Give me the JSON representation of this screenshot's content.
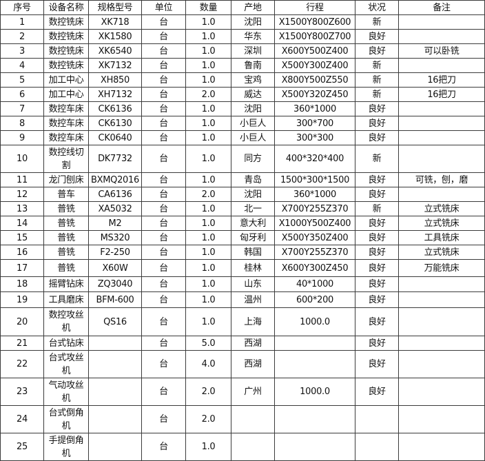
{
  "headers": [
    "序号",
    "设备名称",
    "规格型号",
    "单位",
    "数量",
    "产地",
    "行程",
    "状况",
    "备注"
  ],
  "rows": [
    [
      "1",
      "数控铣床",
      "XK718",
      "台",
      "1.0",
      "沈阳",
      "X1500Y800Z600",
      "新",
      ""
    ],
    [
      "2",
      "数控铣床",
      "XK1580",
      "台",
      "1.0",
      "华东",
      "X1500Y800Z700",
      "良好",
      ""
    ],
    [
      "3",
      "数控铣床",
      "XK6540",
      "台",
      "1.0",
      "深圳",
      "X600Y500Z400",
      "良好",
      "可以卧铣"
    ],
    [
      "4",
      "数控铣床",
      "XK7132",
      "台",
      "1.0",
      "鲁南",
      "X500Y300Z400",
      "新",
      ""
    ],
    [
      "5",
      "加工中心",
      "XH850",
      "台",
      "1.0",
      "宝鸡",
      "X800Y500Z550",
      "新",
      "16把刀"
    ],
    [
      "6",
      "加工中心",
      "XH7132",
      "台",
      "2.0",
      "威达",
      "X500Y320Z450",
      "新",
      "16把刀"
    ],
    [
      "7",
      "数控车床",
      "CK6136",
      "台",
      "1.0",
      "沈阳",
      "360*1000",
      "良好",
      ""
    ],
    [
      "8",
      "数控车床",
      "CK6130",
      "台",
      "1.0",
      "小巨人",
      "300*700",
      "良好",
      ""
    ],
    [
      "9",
      "数控车床",
      "CK0640",
      "台",
      "1.0",
      "小巨人",
      "300*300",
      "良好",
      ""
    ],
    [
      "10",
      "数控线切割",
      "DK7732",
      "台",
      "1.0",
      "同方",
      "400*320*400",
      "新",
      ""
    ],
    [
      "11",
      "龙门刨床",
      "BXMQ2016",
      "台",
      "1.0",
      "青岛",
      "1500*300*1500",
      "良好",
      "可铣，刨，磨"
    ],
    [
      "12",
      "普车",
      "CA6136",
      "台",
      "2.0",
      "沈阳",
      "360*1000",
      "良好",
      ""
    ],
    [
      "13",
      "普铣",
      "XA5032",
      "台",
      "1.0",
      "北一",
      "X700Y255Z370",
      "新",
      "立式铣床"
    ],
    [
      "14",
      "普铣",
      "M2",
      "台",
      "1.0",
      "意大利",
      "X1000Y500Z400",
      "良好",
      "立式铣床"
    ],
    [
      "15",
      "普铣",
      "MS320",
      "台",
      "1.0",
      "匈牙利",
      "X500Y350Z400",
      "良好",
      "工具铣床"
    ],
    [
      "16",
      "普铣",
      "F2-250",
      "台",
      "1.0",
      "韩国",
      "X700Y255Z370",
      "良好",
      "立式铣床"
    ],
    [
      "17",
      "普铣",
      "X60W",
      "台",
      "1.0",
      "桂林",
      "X600Y300Z450",
      "良好",
      "万能铣床"
    ],
    [
      "18",
      "摇臂钻床",
      "ZQ3040",
      "台",
      "1.0",
      "山东",
      "40*1000",
      "良好",
      ""
    ],
    [
      "19",
      "工具磨床",
      "BFM-600",
      "台",
      "1.0",
      "温州",
      "600*200",
      "良好",
      ""
    ],
    [
      "20",
      "数控攻丝机",
      "QS16",
      "台",
      "1.0",
      "上海",
      "1000.0",
      "良好",
      ""
    ],
    [
      "21",
      "台式钻床",
      "",
      "台",
      "5.0",
      "西湖",
      "",
      "良好",
      ""
    ],
    [
      "22",
      "台式攻丝机",
      "",
      "台",
      "4.0",
      "西湖",
      "",
      "良好",
      ""
    ],
    [
      "23",
      "气动攻丝机",
      "",
      "台",
      "2.0",
      "广州",
      "1000.0",
      "良好",
      ""
    ],
    [
      "24",
      "台式倒角机",
      "",
      "台",
      "2.0",
      "",
      "",
      "",
      ""
    ],
    [
      "25",
      "手提倒角机",
      "",
      "台",
      "1.0",
      "",
      "",
      "",
      ""
    ]
  ]
}
